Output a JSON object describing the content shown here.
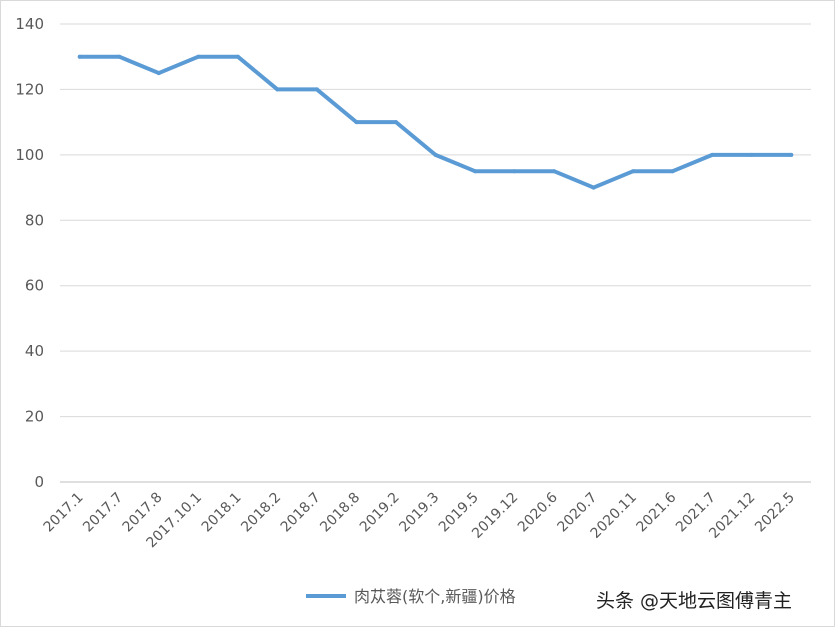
{
  "chart_data": {
    "type": "line",
    "categories": [
      "2017.1",
      "2017.7",
      "2017.8",
      "2017.10.1",
      "2018.1",
      "2018.2",
      "2018.7",
      "2018.8",
      "2019.2",
      "2019.3",
      "2019.5",
      "2019.12",
      "2020.6",
      "2020.7",
      "2020.11",
      "2021.6",
      "2021.7",
      "2021.12",
      "2022.5"
    ],
    "series": [
      {
        "name": "肉苁蓉(软个,新疆)价格",
        "values": [
          130,
          130,
          125,
          130,
          130,
          120,
          120,
          110,
          110,
          100,
          95,
          95,
          95,
          90,
          95,
          95,
          100,
          100,
          100
        ],
        "color": "#5b9bd5"
      }
    ],
    "ylim": [
      0,
      140
    ],
    "yticks": [
      "0",
      "20",
      "40",
      "60",
      "80",
      "100",
      "120",
      "140"
    ],
    "grid": true,
    "legend_position": "bottom"
  },
  "watermark": "头条 @天地云图傅青主"
}
